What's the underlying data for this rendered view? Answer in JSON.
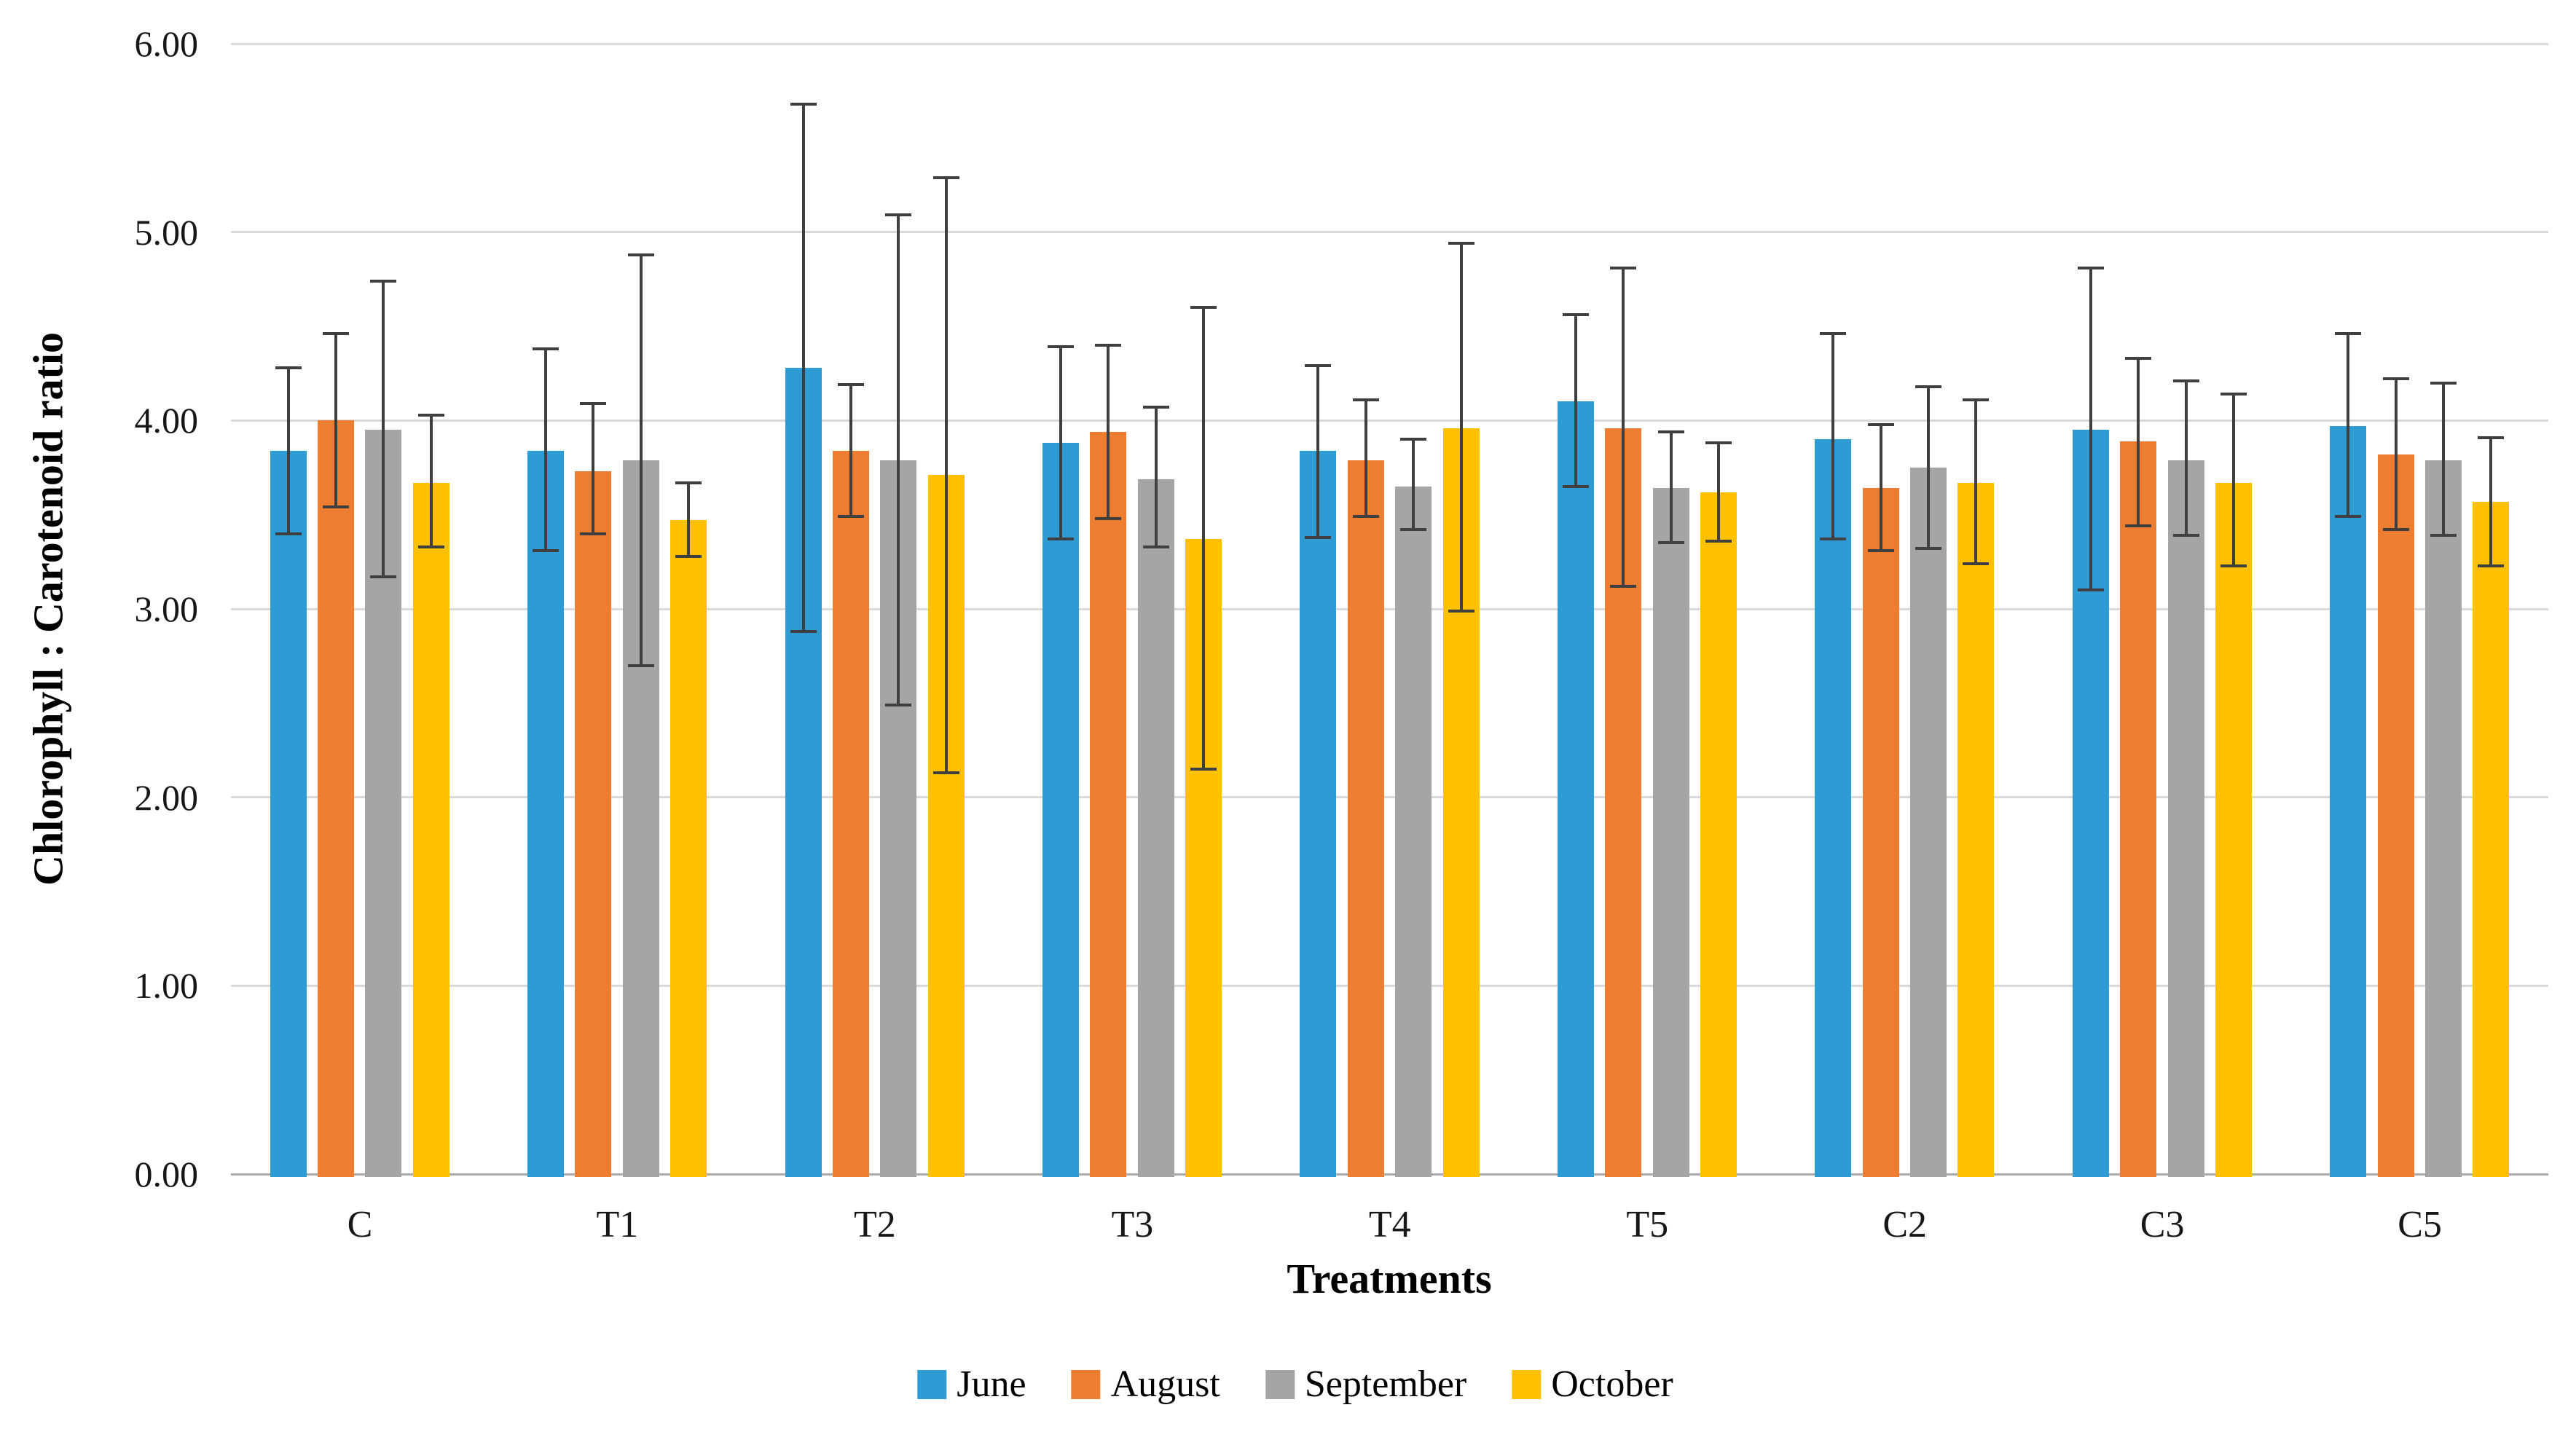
{
  "chart_data": {
    "type": "bar",
    "title": "",
    "xlabel": "Treatments",
    "ylabel": "Chlorophyll : Carotenoid ratio",
    "categories": [
      "C",
      "T1",
      "T2",
      "T3",
      "T4",
      "T5",
      "C2",
      "C3",
      "C5"
    ],
    "ylim": [
      0,
      6
    ],
    "ytick_labels": [
      "0.00",
      "1.00",
      "2.00",
      "3.00",
      "4.00",
      "5.00",
      "6.00"
    ],
    "grid": true,
    "legend_position": "bottom",
    "error_bars": true,
    "error_bar_color": "#3f3f3f",
    "gridline_color": "#d9d9d9",
    "series": [
      {
        "name": "June",
        "color": "#2e9bd5",
        "values": [
          3.84,
          3.84,
          4.28,
          3.88,
          3.84,
          4.1,
          3.9,
          3.95,
          3.97
        ],
        "err_low": [
          3.4,
          3.31,
          2.88,
          3.37,
          3.38,
          3.65,
          3.37,
          3.1,
          3.49
        ],
        "err_high": [
          4.28,
          4.38,
          5.68,
          4.39,
          4.29,
          4.56,
          4.46,
          4.81,
          4.46
        ]
      },
      {
        "name": "August",
        "color": "#ed7d31",
        "values": [
          4.0,
          3.73,
          3.84,
          3.94,
          3.79,
          3.96,
          3.64,
          3.89,
          3.82
        ],
        "err_low": [
          3.54,
          3.4,
          3.49,
          3.48,
          3.49,
          3.12,
          3.31,
          3.44,
          3.42
        ],
        "err_high": [
          4.46,
          4.09,
          4.19,
          4.4,
          4.11,
          4.81,
          3.98,
          4.33,
          4.22
        ]
      },
      {
        "name": "September",
        "color": "#a5a5a5",
        "values": [
          3.95,
          3.79,
          3.79,
          3.69,
          3.65,
          3.64,
          3.75,
          3.79,
          3.79
        ],
        "err_low": [
          3.17,
          2.7,
          2.49,
          3.33,
          3.42,
          3.35,
          3.32,
          3.39,
          3.39
        ],
        "err_high": [
          4.74,
          4.88,
          5.09,
          4.07,
          3.9,
          3.94,
          4.18,
          4.21,
          4.2
        ]
      },
      {
        "name": "October",
        "color": "#ffc000",
        "values": [
          3.67,
          3.47,
          3.71,
          3.37,
          3.96,
          3.62,
          3.67,
          3.67,
          3.57
        ],
        "err_low": [
          3.33,
          3.28,
          2.13,
          2.15,
          2.99,
          3.36,
          3.24,
          3.23,
          3.23
        ],
        "err_high": [
          4.03,
          3.67,
          5.29,
          4.6,
          4.94,
          3.88,
          4.11,
          4.14,
          3.91
        ]
      }
    ]
  }
}
